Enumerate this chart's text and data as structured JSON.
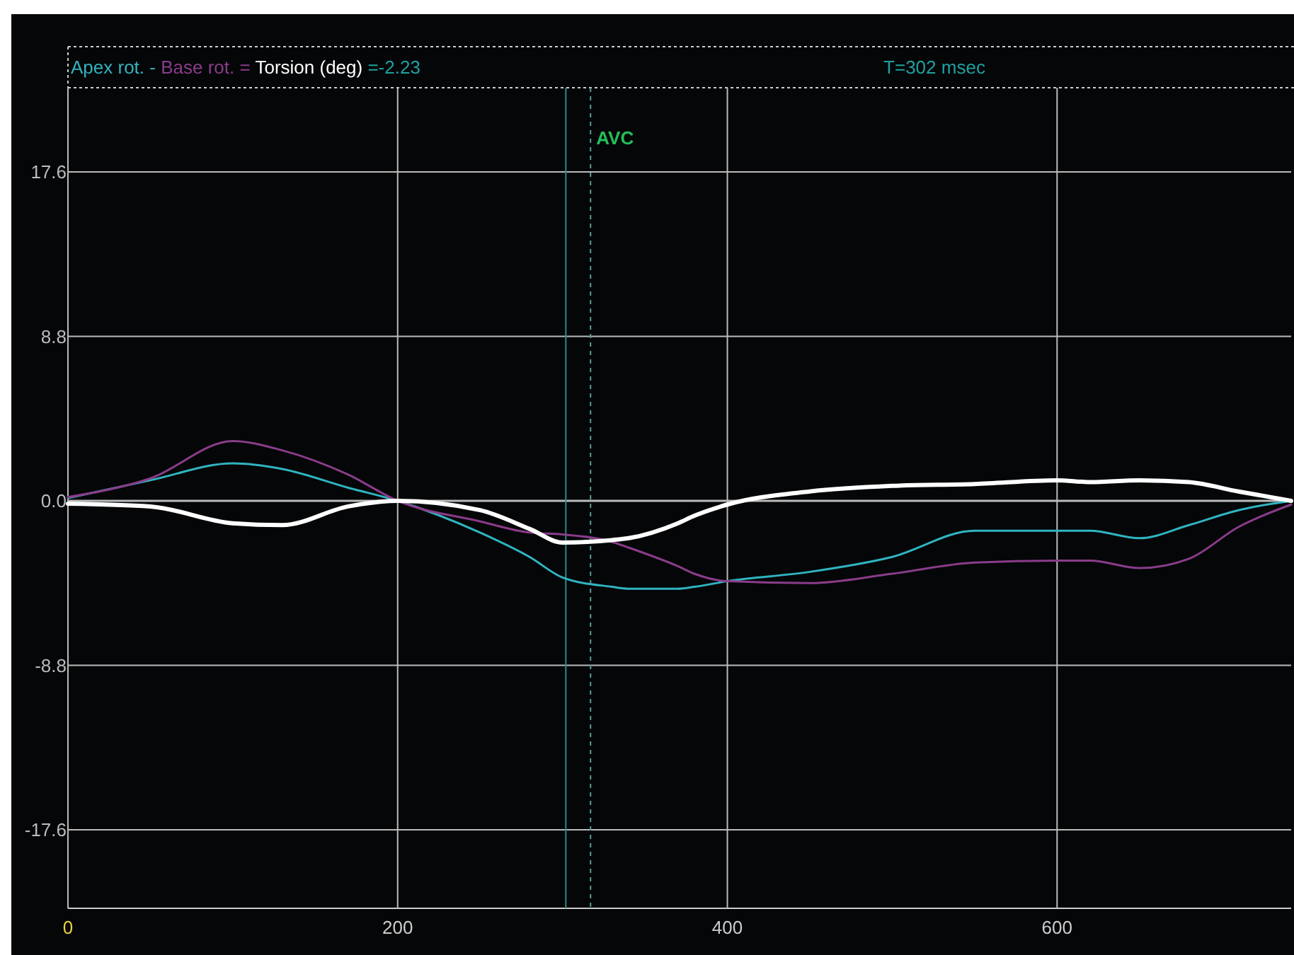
{
  "chart_data": {
    "type": "line",
    "x": [
      0,
      50,
      100,
      130,
      170,
      200,
      250,
      280,
      300,
      330,
      340,
      370,
      380,
      400,
      450,
      500,
      550,
      600,
      620,
      650,
      680,
      710,
      742
    ],
    "xlim": [
      0,
      742
    ],
    "ylim": [
      -21.8,
      22.1
    ],
    "xticks": [
      0,
      200,
      400,
      600
    ],
    "yticks": [
      -17.6,
      -8.8,
      {
        "value": 0,
        "label": "0.0"
      },
      8.8,
      17.6
    ],
    "grid": true,
    "legend": "top",
    "line_style": "solid",
    "series": [
      {
        "name": "Apex rot.",
        "color": "#30b4c0",
        "values": [
          0.15,
          1.1,
          2.0,
          1.7,
          0.7,
          0,
          -1.7,
          -3.0,
          -4.1,
          -4.6,
          -4.7,
          -4.7,
          -4.6,
          -4.3,
          -3.8,
          -3.0,
          -1.6,
          -1.6,
          -1.6,
          -2.0,
          -1.3,
          -0.5,
          0
        ]
      },
      {
        "name": "Base rot.",
        "color": "#8a3c8a",
        "values": [
          0.2,
          1.2,
          3.2,
          2.7,
          1.4,
          0,
          -1.1,
          -1.7,
          -1.8,
          -2.2,
          -2.5,
          -3.5,
          -3.9,
          -4.3,
          -4.4,
          -3.9,
          -3.3,
          -3.2,
          -3.2,
          -3.6,
          -3.1,
          -1.4,
          -0.2
        ]
      },
      {
        "name": "Torsion (deg)",
        "color": "#ffffff",
        "values": [
          -0.15,
          -0.3,
          -1.2,
          -1.3,
          -0.3,
          0,
          -0.5,
          -1.5,
          -2.23,
          -2.1,
          -2.0,
          -1.2,
          -0.8,
          -0.2,
          0.5,
          0.8,
          0.9,
          1.1,
          1.0,
          1.1,
          1.0,
          0.5,
          0
        ]
      }
    ],
    "ref_lines": [
      {
        "axis": "x",
        "value": 302,
        "color": "#2a8a8a",
        "line_style": "solid"
      },
      {
        "axis": "x",
        "value": 317,
        "label": "AVC",
        "color": "#5a9a9a",
        "line_style": "dashed"
      }
    ],
    "annotations": [
      "-",
      "=",
      "=-2.23",
      "T=302 msec"
    ]
  }
}
